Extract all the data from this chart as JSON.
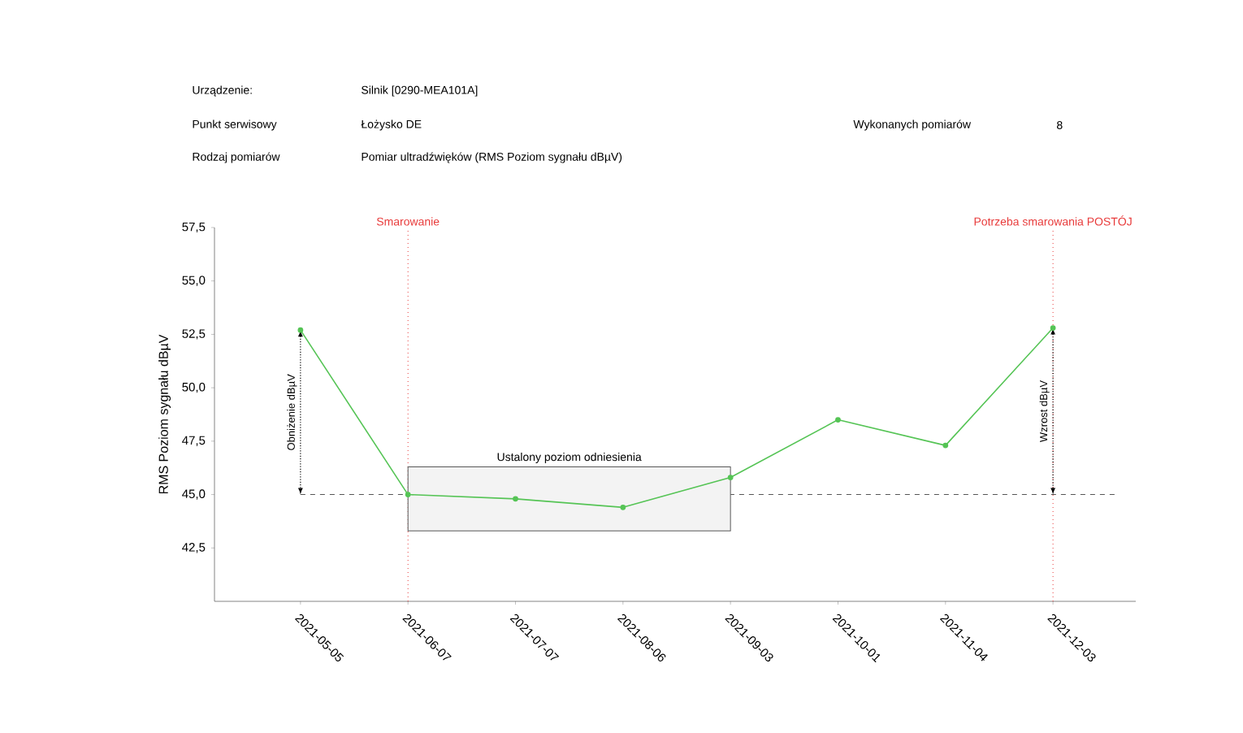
{
  "chart_data": {
    "type": "line",
    "ylabel": "RMS Poziom sygnału dBµV",
    "categories": [
      "2021-05-05",
      "2021-06-07",
      "2021-07-07",
      "2021-08-06",
      "2021-09-03",
      "2021-10-01",
      "2021-11-04",
      "2021-12-03"
    ],
    "series": [
      {
        "color": "#55c455",
        "values": [
          52.7,
          45.0,
          44.8,
          44.4,
          45.8,
          48.5,
          47.3,
          52.8
        ]
      }
    ],
    "ylim": [
      40,
      57.5
    ],
    "yticks": [
      {
        "value": 42.5,
        "label": "42,5"
      },
      {
        "value": 45.0,
        "label": "45,0"
      },
      {
        "value": 47.5,
        "label": "47,5"
      },
      {
        "value": 50.0,
        "label": "50,0"
      },
      {
        "value": 52.5,
        "label": "52,5"
      },
      {
        "value": 55.0,
        "label": "55,0"
      },
      {
        "value": 57.5,
        "label": "57,5"
      }
    ],
    "marker": "circle",
    "line_style": "solid",
    "grid": false,
    "ref_lines": [
      {
        "axis": "x",
        "value": "2021-06-07",
        "label": "Smarowanie",
        "color": "#e83a3a",
        "line_style": "dotted"
      },
      {
        "axis": "x",
        "value": "2021-12-03",
        "label": "Potrzeba smarowania POSTÓJ",
        "color": "#e83a3a",
        "line_style": "dotted"
      },
      {
        "axis": "y",
        "value": 45.0,
        "color": "#555555",
        "line_style": "dashed"
      }
    ],
    "bands": [
      {
        "axis": "y",
        "from": 43.3,
        "to": 46.3,
        "color": "#f3f3f3",
        "label": "Ustalony poziom odniesienia"
      }
    ],
    "annotations": [
      "Urządzenie:",
      "Silnik [0290-MEA101A]",
      "Punkt serwisowy",
      "Łożysko DE",
      "Wykonanych pomiarów",
      "8",
      "Rodzaj pomiarów",
      "Pomiar ultradźwięków (RMS Poziom sygnału dBµV)",
      "Obniżenie dBµV",
      "Wzrost dBµV"
    ]
  }
}
